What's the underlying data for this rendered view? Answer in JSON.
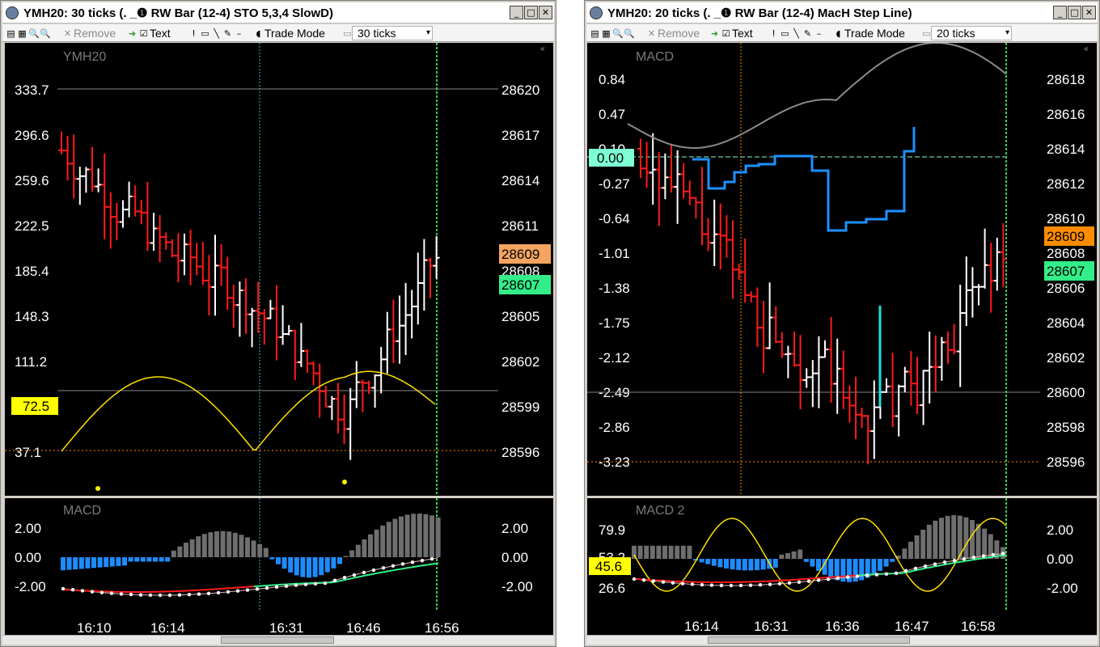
{
  "windows": [
    {
      "id": "L",
      "title": "YMH20: 30 ticks (.  _❶ RW Bar (12-4) STO 5,3,4 SlowD)",
      "toolbar": {
        "remove": "Remove",
        "text": "Text",
        "trade_mode": "Trade Mode",
        "ticks": "30 ticks"
      },
      "main": {
        "label": "YMH20",
        "left_axis": [
          "333.7",
          "296.6",
          "259.6",
          "222.5",
          "185.4",
          "148.3",
          "111.2",
          "37.1"
        ],
        "right_axis": [
          "28620",
          "28617",
          "28614",
          "28611",
          "28608",
          "28605",
          "28602",
          "28599",
          "28596"
        ],
        "badge_left": "72.5",
        "badge_right_1": "28609",
        "badge_right_2": "28607"
      },
      "sub": {
        "label": "MACD",
        "left_axis": [
          "2.00",
          "0.00",
          "-2.00"
        ],
        "right_axis": [
          "2.00",
          "0.00",
          "-2.00"
        ],
        "times": [
          "16:10",
          "16:14",
          "16:31",
          "16:46",
          "16:56"
        ]
      },
      "colors": {
        "accent_green": "#33ee88",
        "accent_orange": "#f4a460",
        "badge_yellow": "#ffff00"
      }
    },
    {
      "id": "R",
      "title": "YMH20: 20 ticks (.  _❶ RW Bar (12-4) MacH Step Line)",
      "toolbar": {
        "remove": "Remove",
        "text": "Text",
        "trade_mode": "Trade Mode",
        "ticks": "20 ticks"
      },
      "main": {
        "label": "MACD",
        "left_axis": [
          "0.84",
          "0.47",
          "0.10",
          "0.00",
          "-0.27",
          "-0.64",
          "-1.01",
          "-1.38",
          "-1.75",
          "-2.12",
          "-2.49",
          "-2.86",
          "-3.23"
        ],
        "right_axis": [
          "28618",
          "28616",
          "28614",
          "28612",
          "28610",
          "28608",
          "28606",
          "28604",
          "28602",
          "28600",
          "28598",
          "28596"
        ],
        "badge_right_1": "28609",
        "badge_right_2": "28607"
      },
      "sub": {
        "label": "MACD 2",
        "left_axis": [
          "79.9",
          "53.2",
          "26.6"
        ],
        "badge_left": "45.6",
        "right_axis": [
          "2.00",
          "0.00",
          "-2.00"
        ],
        "times": [
          "16:14",
          "16:31",
          "16:36",
          "16:47",
          "16:58"
        ]
      },
      "colors": {
        "accent_cyan": "#7fffd4",
        "accent_orange": "#ff8c00",
        "step_blue": "#1e90ff"
      }
    }
  ]
}
